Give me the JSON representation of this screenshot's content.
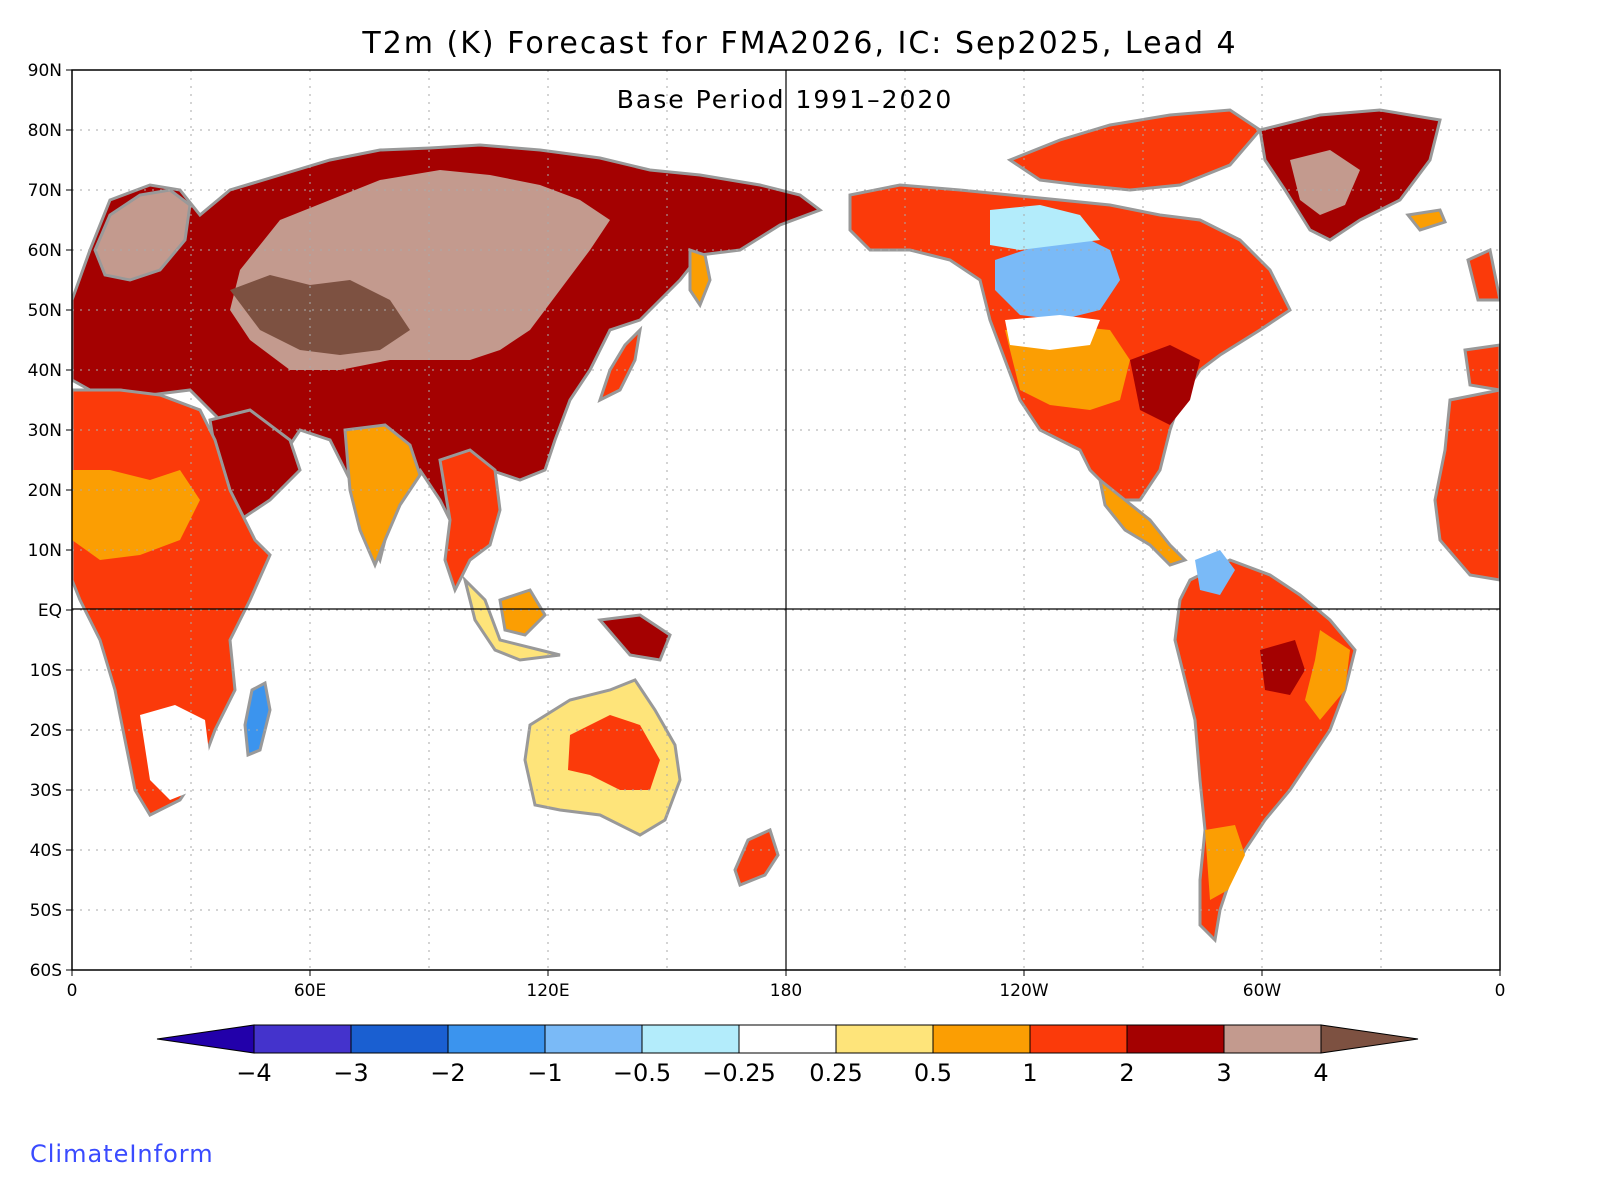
{
  "title": "T2m (K) Forecast for FMA2026, IC: Sep2025, Lead 4",
  "subtitle": "Base Period 1991–2020",
  "lat_labels": [
    "90N",
    "80N",
    "70N",
    "60N",
    "50N",
    "40N",
    "30N",
    "20N",
    "10N",
    "EQ",
    "10S",
    "20S",
    "30S",
    "40S",
    "50S",
    "60S"
  ],
  "lon_labels": [
    "0",
    "60E",
    "120E",
    "180",
    "120W",
    "60W",
    "0"
  ],
  "colorbar": {
    "ticks": [
      "−4",
      "−3",
      "−2",
      "−1",
      "−0.5",
      "−0.25",
      "0.25",
      "0.5",
      "1",
      "2",
      "3",
      "4"
    ],
    "colors": [
      "#2200aa",
      "#4433cc",
      "#1a5fd1",
      "#3b94ee",
      "#7abaf7",
      "#b3ecfb",
      "#ffffff",
      "#fee47a",
      "#fb9e03",
      "#fb3a0a",
      "#a40101",
      "#c39a8e",
      "#7d5141"
    ]
  },
  "map": {
    "land_outline_color": "#999999",
    "ocean_color": "#ffffff",
    "gridline_style": "dotted"
  },
  "brand": "ClimateInform"
}
